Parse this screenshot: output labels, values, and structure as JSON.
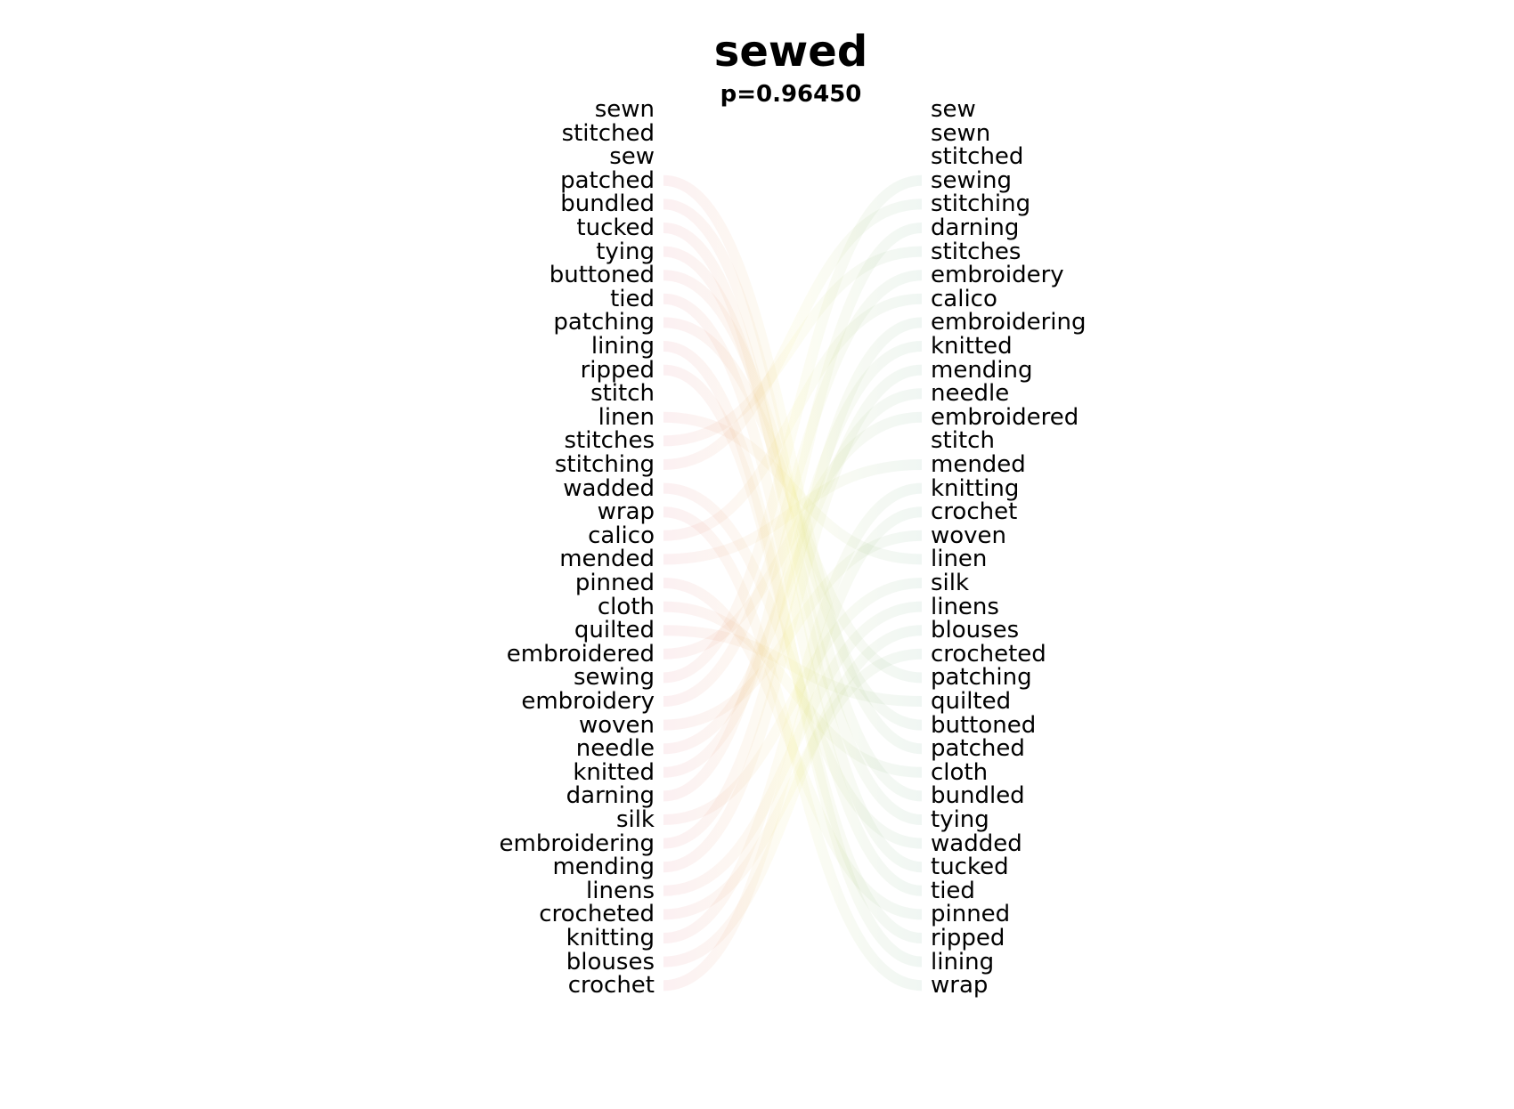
{
  "title": "sewed",
  "subtitle": "p=0.96450",
  "left_words": [
    "sewn",
    "stitched",
    "sew",
    "patched",
    "bundled",
    "tucked",
    "tying",
    "buttoned",
    "tied",
    "patching",
    "lining",
    "ripped",
    "stitch",
    "linen",
    "stitches",
    "stitching",
    "wadded",
    "wrap",
    "calico",
    "mended",
    "pinned",
    "cloth",
    "quilted",
    "embroidered",
    "sewing",
    "embroidery",
    "woven",
    "needle",
    "knitted",
    "darning",
    "silk",
    "embroidering",
    "mending",
    "linens",
    "crocheted",
    "knitting",
    "blouses",
    "crochet"
  ],
  "right_words": [
    "sew",
    "sewn",
    "stitched",
    "sewing",
    "stitching",
    "darning",
    "stitches",
    "embroidery",
    "calico",
    "embroidering",
    "knitted",
    "mending",
    "needle",
    "embroidered",
    "stitch",
    "mended",
    "knitting",
    "crochet",
    "woven",
    "linen",
    "silk",
    "linens",
    "blouses",
    "crocheted",
    "patching",
    "quilted",
    "buttoned",
    "patched",
    "cloth",
    "bundled",
    "tying",
    "wadded",
    "tucked",
    "tied",
    "pinned",
    "ripped",
    "lining",
    "wrap"
  ],
  "colors": {
    "left_shift": "#e05a6a",
    "right_shift": "#5aa07a",
    "mid": "#e8e070"
  }
}
